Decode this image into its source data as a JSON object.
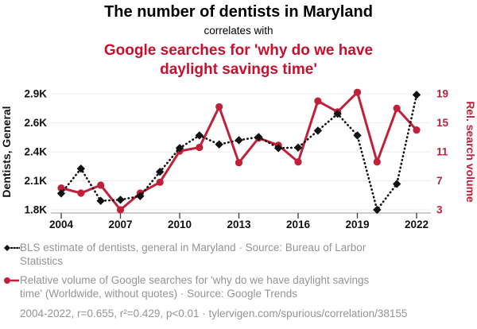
{
  "header": {
    "title": "The number of dentists in Maryland",
    "subtitle": "correlates with",
    "title2": "Google searches for 'why do we have daylight savings time'"
  },
  "colors": {
    "accent_red": "#c0203a",
    "title_red": "#c8102e",
    "series_black": "#111111",
    "legend_gray": "#949494",
    "gridline": "#ececec"
  },
  "chart_data": {
    "type": "line",
    "x": [
      2004,
      2005,
      2006,
      2007,
      2008,
      2009,
      2010,
      2011,
      2012,
      2013,
      2014,
      2015,
      2016,
      2017,
      2018,
      2019,
      2020,
      2021,
      2022
    ],
    "x_ticks": [
      2004,
      2007,
      2010,
      2013,
      2016,
      2019,
      2022
    ],
    "x_tick_labels": [
      "2004",
      "2007",
      "2010",
      "2013",
      "2016",
      "2019",
      "2022"
    ],
    "left_axis": {
      "label": "Dentists, General",
      "range": [
        1800,
        2900
      ],
      "ticks": [
        1800,
        2075,
        2350,
        2625,
        2900
      ],
      "tick_labels": [
        "1.8K",
        "2.1K",
        "2.4K",
        "2.6K",
        "2.9K"
      ],
      "color": "#111111"
    },
    "right_axis": {
      "label": "Rel. search volume",
      "range": [
        3,
        19
      ],
      "ticks": [
        3,
        7,
        11,
        15,
        19
      ],
      "tick_labels": [
        "3",
        "7",
        "11",
        "15",
        "19"
      ],
      "color": "#c0203a"
    },
    "series": [
      {
        "name": "BLS estimate of dentists, general in Maryland",
        "axis": "left",
        "color": "#111111",
        "style": "dotted",
        "marker": "diamond",
        "values": [
          1955,
          2190,
          1885,
          1895,
          1930,
          2160,
          2385,
          2505,
          2420,
          2460,
          2490,
          2385,
          2390,
          2550,
          2710,
          2505,
          1800,
          2045,
          2890
        ]
      },
      {
        "name": "Relative volume of Google searches for 'why do we have daylight savings time'",
        "axis": "right",
        "color": "#c0203a",
        "style": "solid",
        "marker": "circle",
        "values": [
          6.0,
          5.3,
          6.4,
          3.0,
          5.3,
          6.8,
          11.1,
          11.6,
          17.2,
          9.5,
          12.9,
          11.9,
          9.6,
          18.0,
          16.5,
          19.2,
          9.6,
          17.0,
          14.0
        ]
      }
    ]
  },
  "legend": [
    {
      "marker": "black-diamond-dotted-line",
      "line1": "BLS estimate of dentists, general in Maryland · Source: Bureau of Larbor",
      "line2": "Statistics"
    },
    {
      "marker": "red-circle-solid-line",
      "line1": "Relative volume of Google searches for 'why do we have daylight savings",
      "line2": "time' (Worldwide, without quotes) · Source: Google Trends"
    }
  ],
  "footer": {
    "text": "2004-2022, r=0.655, r²=0.429, p<0.01 · tylervigen.com/spurious/correlation/38155"
  }
}
